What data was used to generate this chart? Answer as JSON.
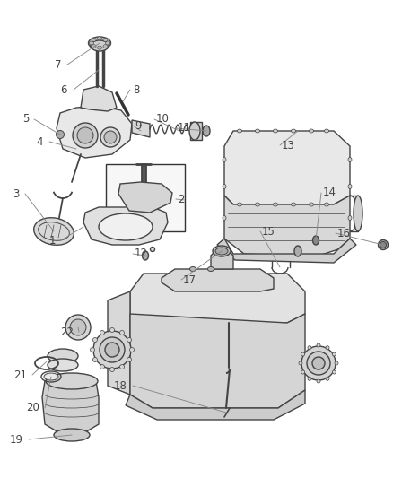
{
  "background_color": "#ffffff",
  "line_color": "#444444",
  "label_color": "#444444",
  "figsize": [
    4.38,
    5.33
  ],
  "dpi": 100,
  "label_fontsize": 8.5,
  "leader_lw": 0.65,
  "leader_color": "#888888"
}
